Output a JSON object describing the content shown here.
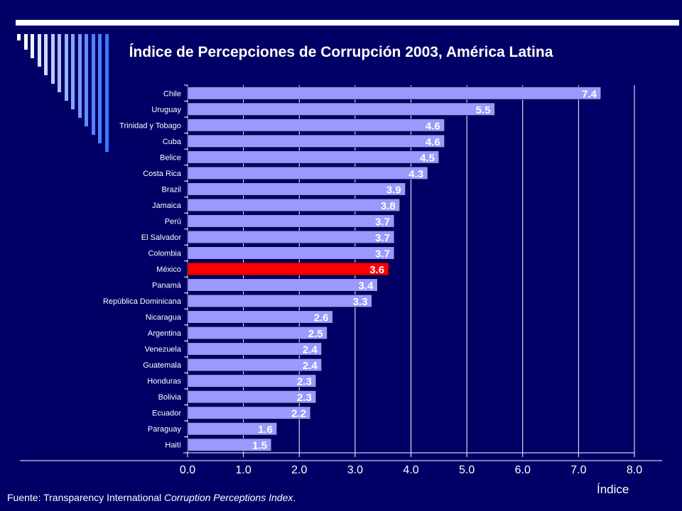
{
  "colors": {
    "background": "#000066",
    "bar": "#9999ff",
    "highlight": "#ff0000",
    "text": "#ffffff",
    "grid": "#ffffff"
  },
  "chart_data": {
    "type": "bar",
    "orientation": "horizontal",
    "title": "Índice de Percepciones de Corrupción 2003, América Latina",
    "xlabel": "Índice",
    "ylabel": "",
    "xlim": [
      0,
      8
    ],
    "xticks": [
      "0.0",
      "1.0",
      "2.0",
      "3.0",
      "4.0",
      "5.0",
      "6.0",
      "7.0",
      "8.0"
    ],
    "grid": true,
    "highlight_category": "México",
    "categories": [
      "Chile",
      "Uruguay",
      "Trinidad y Tobago",
      "Cuba",
      "Belice",
      "Costa Rica",
      "Brazil",
      "Jamaica",
      "Perú",
      "El Salvador",
      "Colombia",
      "México",
      "Panamá",
      "República Dominicana",
      "Nicaragua",
      "Argentina",
      "Venezuela",
      "Guatemala",
      "Honduras",
      "Bolivia",
      "Ecuador",
      "Paraguay",
      "Haití"
    ],
    "values": [
      7.4,
      5.5,
      4.6,
      4.6,
      4.5,
      4.3,
      3.9,
      3.8,
      3.7,
      3.7,
      3.7,
      3.6,
      3.4,
      3.3,
      2.6,
      2.5,
      2.4,
      2.4,
      2.3,
      2.3,
      2.2,
      1.6,
      1.5
    ],
    "value_labels": [
      "7.4",
      "5.5",
      "4.6",
      "4.6",
      "4.5",
      "4.3",
      "3.9",
      "3.8",
      "3.7",
      "3.7",
      "3.7",
      "3.6",
      "3.4",
      "3.3",
      "2.6",
      "2.5",
      "2.4",
      "2.4",
      "2.3",
      "2.3",
      "2.2",
      "1.6",
      "1.5"
    ]
  },
  "footer": {
    "source_prefix": "Fuente:  Transparency International ",
    "source_title": "Corruption Perceptions Index",
    "source_suffix": "."
  }
}
